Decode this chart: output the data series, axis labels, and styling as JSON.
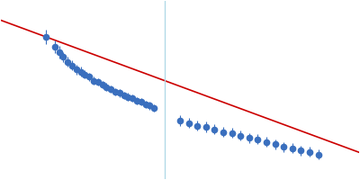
{
  "scatter_x": [
    0.055,
    0.075,
    0.085,
    0.095,
    0.105,
    0.115,
    0.125,
    0.135,
    0.145,
    0.155,
    0.165,
    0.175,
    0.185,
    0.195,
    0.205,
    0.215,
    0.225,
    0.235,
    0.245,
    0.255,
    0.265,
    0.275,
    0.285,
    0.295,
    0.305,
    0.365,
    0.385,
    0.405,
    0.425,
    0.445,
    0.465,
    0.485,
    0.505,
    0.525,
    0.545,
    0.565,
    0.585,
    0.605,
    0.625,
    0.645,
    0.665,
    0.685
  ],
  "scatter_y": [
    0.76,
    0.68,
    0.64,
    0.6,
    0.56,
    0.53,
    0.5,
    0.48,
    0.46,
    0.44,
    0.41,
    0.4,
    0.38,
    0.36,
    0.34,
    0.32,
    0.31,
    0.29,
    0.28,
    0.27,
    0.25,
    0.24,
    0.22,
    0.21,
    0.19,
    0.09,
    0.07,
    0.05,
    0.04,
    0.02,
    0.0,
    -0.01,
    -0.03,
    -0.05,
    -0.06,
    -0.08,
    -0.1,
    -0.12,
    -0.13,
    -0.15,
    -0.16,
    -0.18
  ],
  "scatter_yerr": [
    0.06,
    0.05,
    0.05,
    0.04,
    0.04,
    0.04,
    0.04,
    0.04,
    0.03,
    0.03,
    0.03,
    0.03,
    0.03,
    0.03,
    0.03,
    0.03,
    0.03,
    0.03,
    0.03,
    0.03,
    0.03,
    0.03,
    0.03,
    0.03,
    0.03,
    0.04,
    0.04,
    0.04,
    0.04,
    0.04,
    0.04,
    0.04,
    0.04,
    0.04,
    0.04,
    0.04,
    0.04,
    0.04,
    0.04,
    0.04,
    0.04,
    0.04
  ],
  "line_x_start": -0.05,
  "line_x_end": 0.78,
  "line_slope": -1.275,
  "line_intercept": 0.83,
  "vline_x": 0.33,
  "dot_color": "#3a6fbe",
  "line_color": "#cc0000",
  "vline_color": "#add8e6",
  "bg_color": "#ffffff",
  "xlim": [
    -0.05,
    0.78
  ],
  "ylim": [
    -0.38,
    1.05
  ]
}
